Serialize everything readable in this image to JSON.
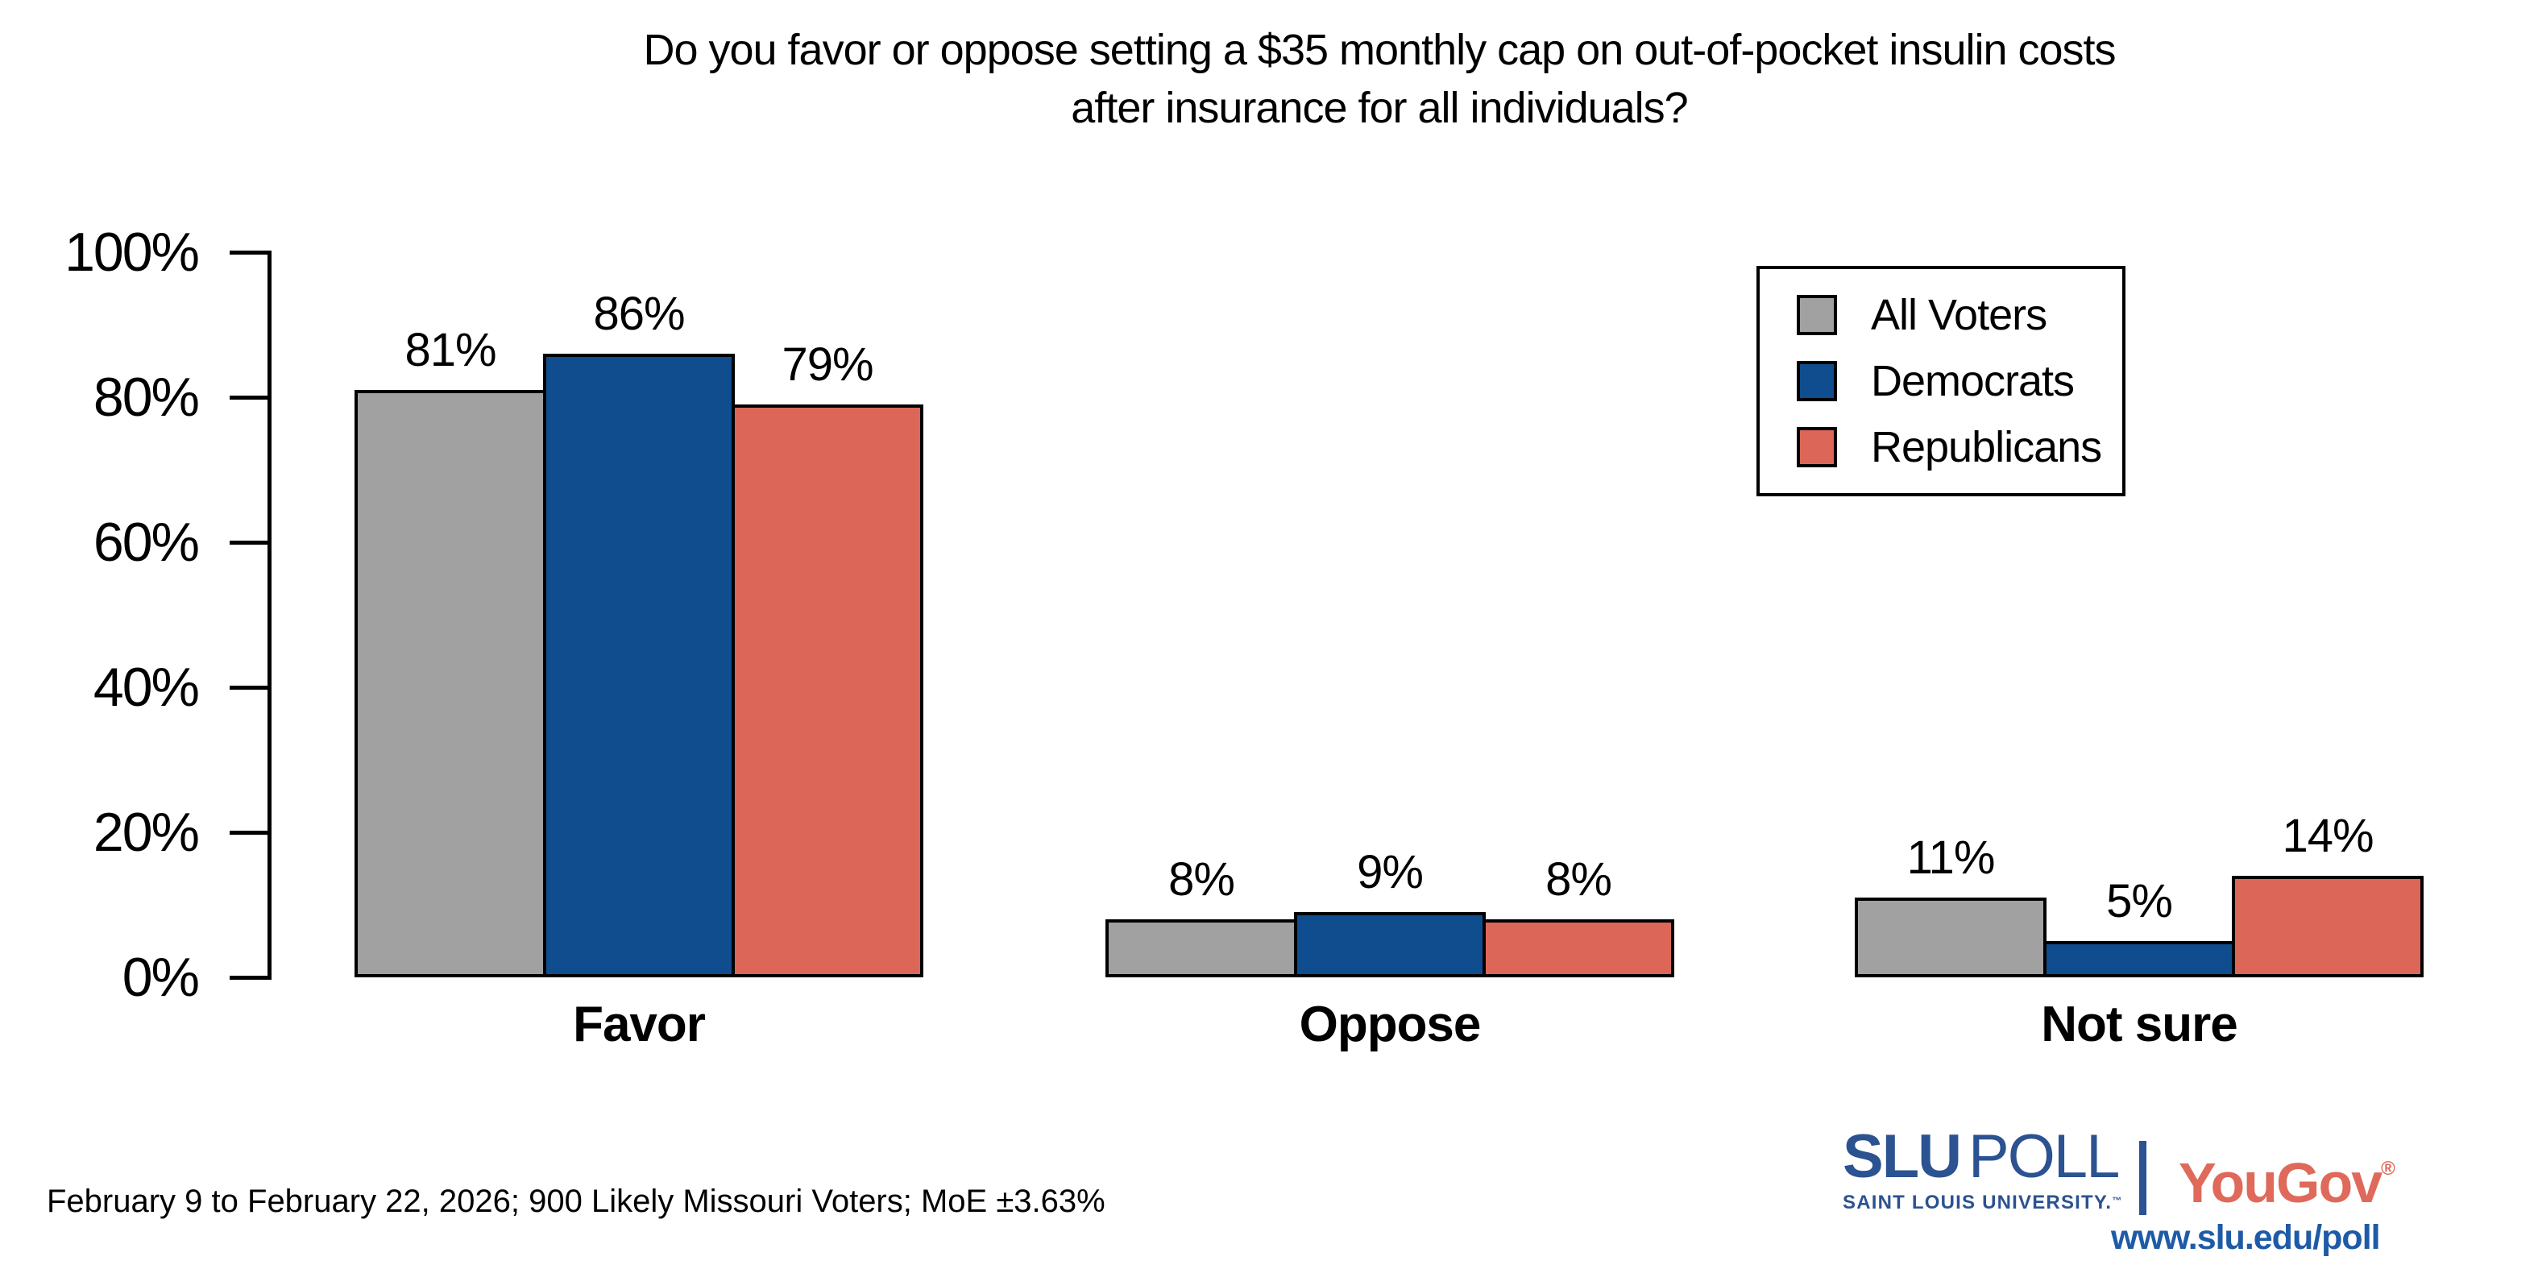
{
  "title": {
    "line1": "Do you favor or oppose setting a $35 monthly cap on out-of-pocket insulin costs",
    "line2": "after insurance for all individuals?"
  },
  "chart_data": {
    "type": "bar",
    "title": "Do you favor or oppose setting a $35 monthly cap on out-of-pocket insulin costs after insurance for all individuals?",
    "categories": [
      "Favor",
      "Oppose",
      "Not sure"
    ],
    "series": [
      {
        "name": "All Voters",
        "color": "#a1a1a1",
        "values": [
          81,
          8,
          11
        ]
      },
      {
        "name": "Democrats",
        "color": "#0f4d8f",
        "values": [
          86,
          9,
          5
        ]
      },
      {
        "name": "Republicans",
        "color": "#dc6657",
        "values": [
          79,
          8,
          14
        ]
      }
    ],
    "value_suffix": "%",
    "ylim": [
      0,
      100
    ],
    "y_ticks": [
      "0%",
      "20%",
      "40%",
      "60%",
      "80%",
      "100%"
    ],
    "grid": false,
    "legend_position": "top-right",
    "bar_border_color": "#000000"
  },
  "footer": {
    "text": "February 9 to February 22, 2026; 900 Likely Missouri Voters; MoE ±3.63%"
  },
  "logo": {
    "slu": "SLU",
    "poll": "POLL",
    "university": "SAINT LOUIS UNIVERSITY.",
    "trademark": "™",
    "yougov": "YouGov",
    "registered": "®",
    "url": "www.slu.edu/poll"
  },
  "colors": {
    "slu_blue": "#2b5291",
    "url_blue": "#1e5ba7",
    "yougov_red": "#df695a",
    "all_voters_gray": "#a1a1a1",
    "democrats_blue": "#0f4d8f",
    "republicans_red": "#dc6657"
  }
}
